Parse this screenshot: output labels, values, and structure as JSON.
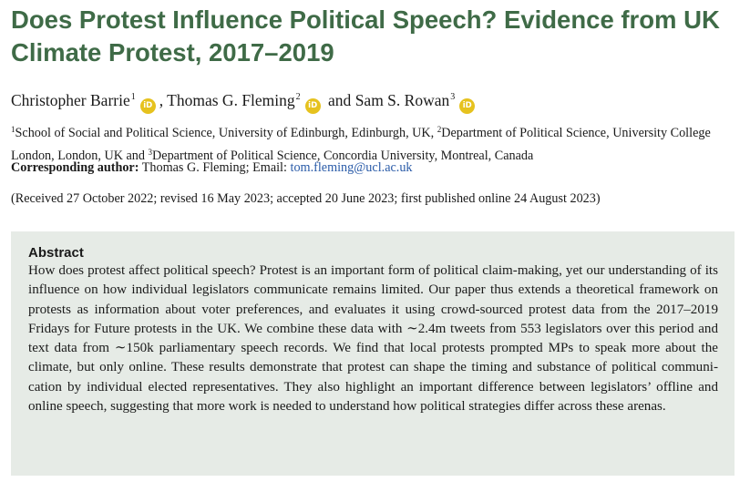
{
  "title": "Does Protest Influence Political Speech? Evidence from UK Climate Protest, 2017–2019",
  "authors": [
    {
      "name": "Christopher Barrie",
      "sup": "1",
      "orcid": "iD"
    },
    {
      "name": "Thomas G. Fleming",
      "sup": "2",
      "orcid": "iD"
    },
    {
      "name": "Sam S. Rowan",
      "sup": "3",
      "orcid": "iD"
    }
  ],
  "author_sep_1": ", ",
  "author_sep_2": " and ",
  "affiliations": [
    {
      "sup": "1",
      "text": "School of Social and Political Science, University of Edinburgh, Edinburgh, UK, "
    },
    {
      "sup": "2",
      "text": "Department of Political Science, University College London, London, UK and "
    },
    {
      "sup": "3",
      "text": "Department of Political Science, Concordia University, Montreal, Canada"
    }
  ],
  "corresponding": {
    "label": "Corresponding author:",
    "name": " Thomas G. Fleming; Email: ",
    "email": "tom.fleming@ucl.ac.uk"
  },
  "dates": "(Received 27 October 2022; revised 16 May 2023; accepted 20 June 2023; first published online 24 August 2023)",
  "abstract": {
    "heading": "Abstract",
    "body": "How does protest affect political speech? Protest is an important form of political claim-making, yet our understanding of its influence on how individual legislators communicate remains limited. Our paper thus extends a theoretical framework on protests as information about voter preferences, and evaluates it using crowd-sourced protest data from the 2017–2019 Fridays for Future protests in the UK. We combine these data with ∼2.4m tweets from 553 legislators over this period and text data from ∼150k parliamentary speech records. We find that local protests prompted MPs to speak more about the climate, but only online. These results demonstrate that protest can shape the timing and substance of political communi­cation by individual elected representatives. They also highlight an important difference between legisla­tors’ offline and online speech, suggesting that more work is needed to understand how political strategies differ across these arenas."
  },
  "colors": {
    "title": "#3f6b47",
    "orcid": "#e6c21e",
    "abstract_bg": "#e6ebe6",
    "link": "#2a5ba8"
  }
}
